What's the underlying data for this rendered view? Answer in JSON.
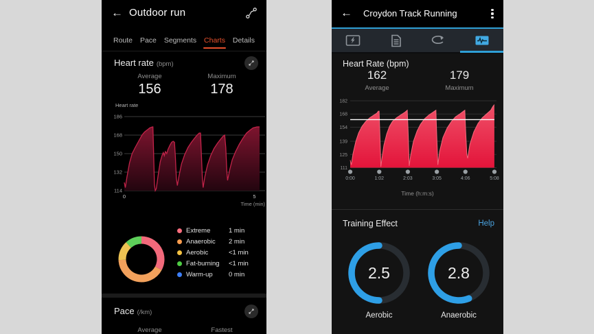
{
  "page": {
    "background": "#d8d8d8"
  },
  "left_phone": {
    "header": {
      "title": "Outdoor run"
    },
    "accent_color": "#e8512d",
    "tabs": [
      {
        "label": "Route",
        "active": false
      },
      {
        "label": "Pace",
        "active": false
      },
      {
        "label": "Segments",
        "active": false
      },
      {
        "label": "Charts",
        "active": true
      },
      {
        "label": "Details",
        "active": false
      }
    ],
    "heart_rate_card": {
      "title": "Heart rate",
      "unit": "(bpm)",
      "average_label": "Average",
      "average_value": "156",
      "maximum_label": "Maximum",
      "maximum_value": "178"
    },
    "pace_card": {
      "title": "Pace",
      "unit": "(/km)",
      "average_label": "Average",
      "fastest_label": "Fastest"
    }
  },
  "right_phone": {
    "header": {
      "title": "Croydon Track Running"
    },
    "accent_color": "#2f9fd6",
    "tab_icons": [
      "map-photo-icon",
      "report-icon",
      "laps-icon",
      "charts-icon"
    ],
    "active_tab_index": 3,
    "heart_rate_section": {
      "title": "Heart Rate (bpm)",
      "average_value": "162",
      "average_label": "Average",
      "maximum_value": "179",
      "maximum_label": "Maximum",
      "x_axis_label": "Time (h:m:s)"
    },
    "training_effect": {
      "title": "Training Effect",
      "help_label": "Help"
    }
  },
  "chart_data": [
    {
      "id": "outdoor-run-heart-rate",
      "type": "area",
      "title": "Heart rate (bpm)",
      "ylabel": "Heart rate",
      "xlabel": "Time (min)",
      "average": 156,
      "maximum": 178,
      "ylim": [
        114,
        186
      ],
      "xlim": [
        0,
        5.2
      ],
      "y_ticks": [
        186,
        168,
        150,
        132,
        114
      ],
      "x_ticks": [
        {
          "x": 0,
          "label": "0"
        },
        {
          "x": 5,
          "label": "5"
        }
      ],
      "grid": true,
      "fill_top": "#7d142e",
      "fill_bottom": "#23050f",
      "stroke": "#c22349",
      "points": [
        [
          0,
          122
        ],
        [
          0.04,
          117
        ],
        [
          0.1,
          127
        ],
        [
          0.2,
          141
        ],
        [
          0.3,
          150
        ],
        [
          0.42,
          156
        ],
        [
          0.55,
          162
        ],
        [
          0.68,
          168
        ],
        [
          0.78,
          171
        ],
        [
          0.88,
          173
        ],
        [
          0.98,
          175
        ],
        [
          1.08,
          176
        ],
        [
          1.1,
          176
        ],
        [
          1.13,
          148
        ],
        [
          1.16,
          120
        ],
        [
          1.19,
          114
        ],
        [
          1.23,
          116
        ],
        [
          1.3,
          129
        ],
        [
          1.38,
          142
        ],
        [
          1.45,
          148
        ],
        [
          1.5,
          151
        ],
        [
          1.54,
          148
        ],
        [
          1.58,
          152
        ],
        [
          1.63,
          150
        ],
        [
          1.68,
          154
        ],
        [
          1.75,
          158
        ],
        [
          1.82,
          161
        ],
        [
          1.88,
          162
        ],
        [
          1.93,
          161
        ],
        [
          1.96,
          148
        ],
        [
          2.0,
          126
        ],
        [
          2.04,
          119
        ],
        [
          2.1,
          128
        ],
        [
          2.2,
          140
        ],
        [
          2.32,
          149
        ],
        [
          2.45,
          156
        ],
        [
          2.58,
          161
        ],
        [
          2.7,
          165
        ],
        [
          2.8,
          168
        ],
        [
          2.88,
          170
        ],
        [
          2.93,
          170
        ],
        [
          2.96,
          152
        ],
        [
          3.0,
          126
        ],
        [
          3.03,
          117
        ],
        [
          3.1,
          128
        ],
        [
          3.2,
          139
        ],
        [
          3.32,
          148
        ],
        [
          3.45,
          155
        ],
        [
          3.58,
          160
        ],
        [
          3.7,
          164
        ],
        [
          3.8,
          167
        ],
        [
          3.86,
          168
        ],
        [
          3.9,
          156
        ],
        [
          3.94,
          133
        ],
        [
          3.97,
          124
        ],
        [
          4.05,
          134
        ],
        [
          4.15,
          144
        ],
        [
          4.28,
          152
        ],
        [
          4.42,
          159
        ],
        [
          4.56,
          165
        ],
        [
          4.7,
          170
        ],
        [
          4.84,
          173
        ],
        [
          4.95,
          175
        ],
        [
          5.1,
          176
        ],
        [
          5.2,
          176
        ]
      ]
    },
    {
      "id": "croydon-heart-rate",
      "type": "area",
      "title": "Heart Rate (bpm)",
      "xlabel": "Time (h:m:s)",
      "average": 162,
      "maximum": 179,
      "average_line": 162,
      "ylim": [
        111,
        182
      ],
      "xlim": [
        0,
        5.133
      ],
      "y_ticks": [
        182,
        168,
        154,
        139,
        125,
        111
      ],
      "x_ticks": [
        {
          "x": 0,
          "label": "0:00"
        },
        {
          "x": 1.033,
          "label": "1:02"
        },
        {
          "x": 2.05,
          "label": "2:03"
        },
        {
          "x": 3.083,
          "label": "3:05"
        },
        {
          "x": 4.1,
          "label": "4:06"
        },
        {
          "x": 5.133,
          "label": "5:08"
        }
      ],
      "grid": true,
      "fill_top": "#ef5068",
      "fill_bottom": "#e3143a",
      "stroke": "#f4697c",
      "points": [
        [
          0,
          119
        ],
        [
          0.04,
          114
        ],
        [
          0.1,
          126
        ],
        [
          0.2,
          139
        ],
        [
          0.3,
          148
        ],
        [
          0.42,
          155
        ],
        [
          0.55,
          160
        ],
        [
          0.7,
          164
        ],
        [
          0.85,
          167
        ],
        [
          0.95,
          169
        ],
        [
          1.0,
          171
        ],
        [
          1.03,
          171
        ],
        [
          1.06,
          142
        ],
        [
          1.09,
          112
        ],
        [
          1.13,
          121
        ],
        [
          1.2,
          135
        ],
        [
          1.3,
          147
        ],
        [
          1.4,
          155
        ],
        [
          1.5,
          160
        ],
        [
          1.65,
          164
        ],
        [
          1.8,
          167
        ],
        [
          1.95,
          170
        ],
        [
          2.03,
          172
        ],
        [
          2.06,
          150
        ],
        [
          2.1,
          113
        ],
        [
          2.15,
          124
        ],
        [
          2.25,
          139
        ],
        [
          2.38,
          150
        ],
        [
          2.5,
          157
        ],
        [
          2.65,
          163
        ],
        [
          2.8,
          167
        ],
        [
          2.95,
          170
        ],
        [
          3.05,
          172
        ],
        [
          3.08,
          145
        ],
        [
          3.12,
          114
        ],
        [
          3.18,
          128
        ],
        [
          3.3,
          143
        ],
        [
          3.45,
          153
        ],
        [
          3.6,
          160
        ],
        [
          3.75,
          165
        ],
        [
          3.9,
          168
        ],
        [
          4.03,
          171
        ],
        [
          4.08,
          172
        ],
        [
          4.11,
          150
        ],
        [
          4.15,
          125
        ],
        [
          4.18,
          121
        ],
        [
          4.26,
          136
        ],
        [
          4.4,
          149
        ],
        [
          4.55,
          158
        ],
        [
          4.7,
          164
        ],
        [
          4.85,
          168
        ],
        [
          5.0,
          172
        ],
        [
          5.08,
          176
        ],
        [
          5.13,
          178
        ]
      ]
    },
    {
      "id": "heart-rate-zones",
      "type": "pie",
      "legend_position": "right",
      "segments": [
        {
          "label": "Extreme",
          "value": "1 min",
          "angle_deg": 118,
          "color": "#f2697b",
          "dot_color": "#fa6e7e"
        },
        {
          "label": "Anaerobic",
          "value": "2 min",
          "angle_deg": 150,
          "color": "#f2a15c",
          "dot_color": "#fa9d4f"
        },
        {
          "label": "Aerobic",
          "value": "<1 min",
          "angle_deg": 50,
          "color": "#ecc253",
          "dot_color": "#f5c242"
        },
        {
          "label": "Fat-burning",
          "value": "<1 min",
          "angle_deg": 42,
          "color": "#5ecf5a",
          "dot_color": "#4ecb44"
        },
        {
          "label": "Warm-up",
          "value": "0 min",
          "angle_deg": 0,
          "color": "#3d7ff7",
          "dot_color": "#3d7ff7"
        }
      ]
    },
    {
      "id": "training-effect",
      "type": "gauge",
      "max": 5,
      "arc_color": "#2e9fe6",
      "track_color": "#282d32",
      "gauges": [
        {
          "label": "Aerobic",
          "value": 2.5,
          "display": "2.5"
        },
        {
          "label": "Anaerobic",
          "value": 2.8,
          "display": "2.8"
        }
      ]
    }
  ]
}
